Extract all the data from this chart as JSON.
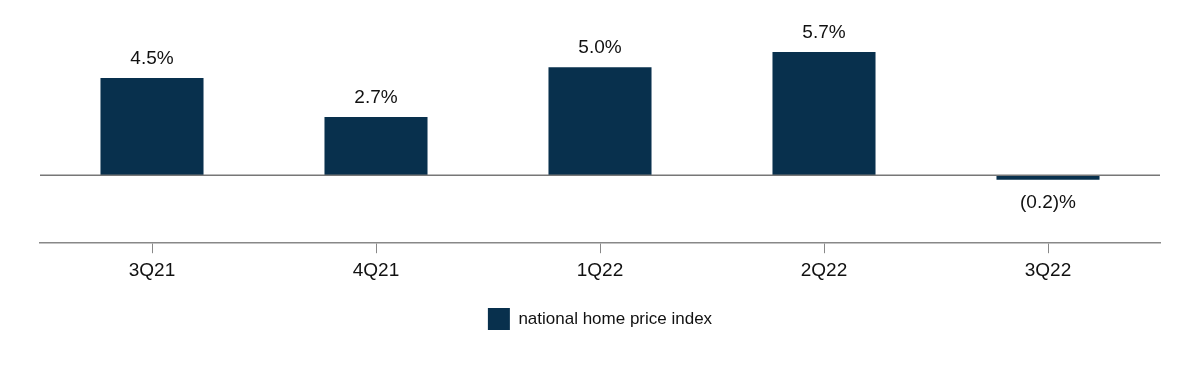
{
  "chart_data": {
    "type": "bar",
    "categories": [
      "3Q21",
      "4Q21",
      "1Q22",
      "2Q22",
      "3Q22"
    ],
    "series": [
      {
        "name": "national home price index",
        "color": "#08304d",
        "values": [
          4.5,
          2.7,
          5.0,
          5.7,
          -0.2
        ],
        "value_labels": [
          "4.5%",
          "2.7%",
          "5.0%",
          "5.7%",
          "(0.2)%"
        ]
      }
    ],
    "legend": "bottom"
  }
}
